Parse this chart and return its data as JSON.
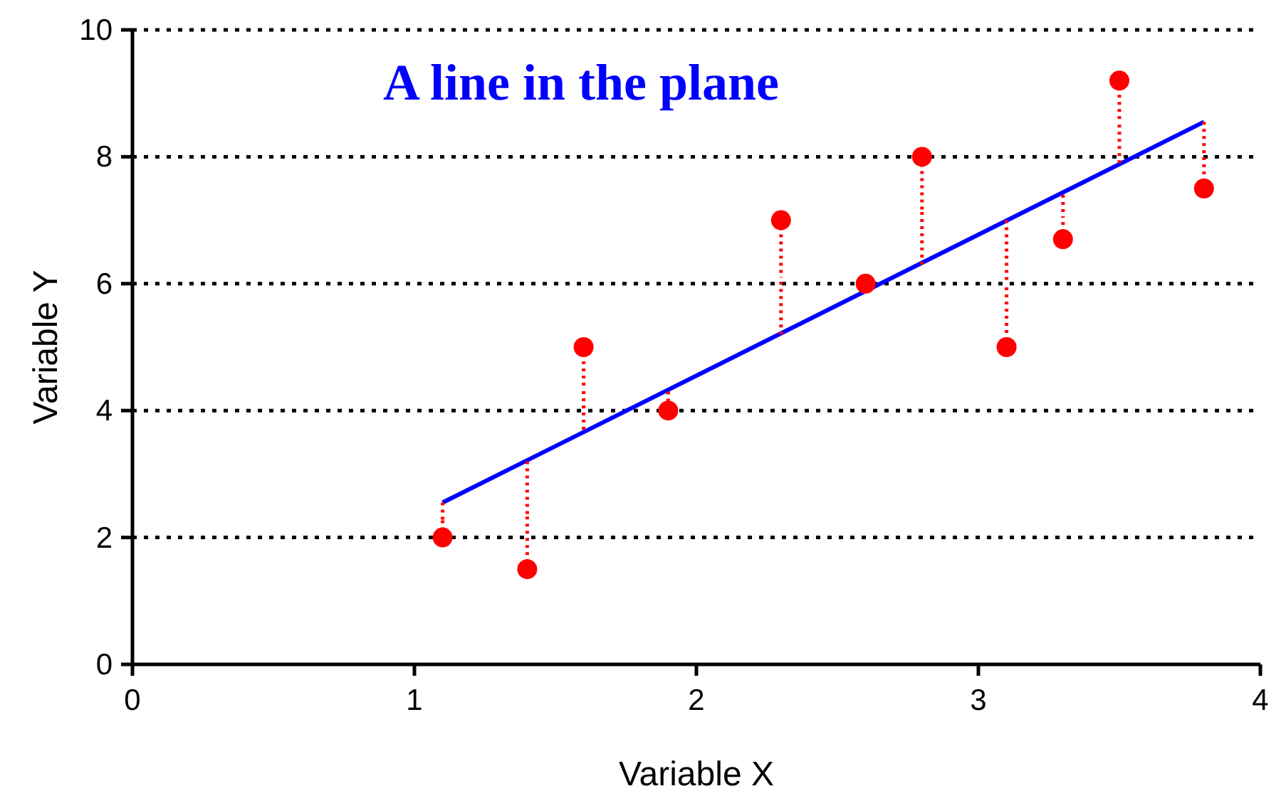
{
  "chart_data": {
    "type": "scatter",
    "title": "A line in the plane",
    "xlabel": "Variable X",
    "ylabel": "Variable Y",
    "xlim": [
      0,
      4
    ],
    "xticks": [
      0,
      1,
      2,
      3,
      4
    ],
    "ylim": [
      0,
      10
    ],
    "yticks": [
      0,
      2,
      4,
      6,
      8,
      10
    ],
    "grid": "y",
    "series": [
      {
        "color": "#ff0000",
        "marker": "circle",
        "x": [
          1.1,
          1.4,
          1.6,
          1.9,
          2.3,
          2.6,
          2.8,
          3.1,
          3.3,
          3.5,
          3.8
        ],
        "values": [
          2,
          1.5,
          5,
          4,
          7,
          6,
          8,
          5,
          6.7,
          9.2,
          7.5
        ],
        "errors": [
          [
            2,
            2.55
          ],
          [
            1.5,
            3.2
          ],
          [
            3.7,
            5
          ],
          [
            4,
            4.3
          ],
          [
            5.2,
            7
          ],
          [
            5.9,
            6
          ],
          [
            6.3,
            8
          ],
          [
            5,
            7
          ],
          [
            6.7,
            7.4
          ],
          [
            7.9,
            9.2
          ],
          [
            7.5,
            8.55
          ]
        ]
      },
      {
        "type": "line",
        "color": "#0000ff",
        "marker": "none",
        "line_style": "solid",
        "x": [
          1.1,
          3.8
        ],
        "values": [
          2.55,
          8.55
        ]
      }
    ]
  }
}
